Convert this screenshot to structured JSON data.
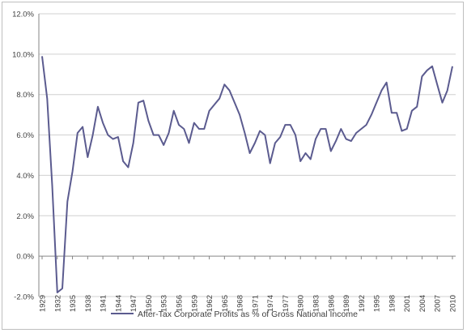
{
  "chart_data": {
    "type": "line",
    "title": "",
    "xlabel": "",
    "ylabel": "",
    "ylim": [
      -2,
      12
    ],
    "yticks": [
      "12.0%",
      "10.0%",
      "8.0%",
      "6.0%",
      "4.0%",
      "2.0%",
      "0.0%",
      "-2.0%"
    ],
    "ytick_values": [
      12,
      10,
      8,
      6,
      4,
      2,
      0,
      -2
    ],
    "xtick_labels": [
      "1929",
      "1932",
      "1935",
      "1938",
      "1941",
      "1944",
      "1947",
      "1950",
      "1953",
      "1956",
      "1959",
      "1962",
      "1965",
      "1968",
      "1971",
      "1974",
      "1977",
      "1980",
      "1983",
      "1986",
      "1989",
      "1992",
      "1995",
      "1998",
      "2001",
      "2004",
      "2007",
      "2010"
    ],
    "grid": "horizontal",
    "legend_position": "bottom",
    "series": [
      {
        "name": "After-Tax Corporate Profits as % of Gross National Income",
        "color": "#5b5b8f",
        "x": [
          1929,
          1930,
          1931,
          1932,
          1933,
          1934,
          1935,
          1936,
          1937,
          1938,
          1939,
          1940,
          1941,
          1942,
          1943,
          1944,
          1945,
          1946,
          1947,
          1948,
          1949,
          1950,
          1951,
          1952,
          1953,
          1954,
          1955,
          1956,
          1957,
          1958,
          1959,
          1960,
          1961,
          1962,
          1963,
          1964,
          1965,
          1966,
          1967,
          1968,
          1969,
          1970,
          1971,
          1972,
          1973,
          1974,
          1975,
          1976,
          1977,
          1978,
          1979,
          1980,
          1981,
          1982,
          1983,
          1984,
          1985,
          1986,
          1987,
          1988,
          1989,
          1990,
          1991,
          1992,
          1993,
          1994,
          1995,
          1996,
          1997,
          1998,
          1999,
          2000,
          2001,
          2002,
          2003,
          2004,
          2005,
          2006,
          2007,
          2008,
          2009,
          2010
        ],
        "values": [
          9.9,
          7.8,
          3.5,
          -1.8,
          -1.6,
          2.7,
          4.2,
          6.1,
          6.4,
          4.9,
          6.0,
          7.4,
          6.6,
          6.0,
          5.8,
          5.9,
          4.7,
          4.4,
          5.6,
          7.6,
          7.7,
          6.7,
          6.0,
          6.0,
          5.5,
          6.1,
          7.2,
          6.5,
          6.3,
          5.6,
          6.6,
          6.3,
          6.3,
          7.2,
          7.5,
          7.8,
          8.5,
          8.2,
          7.6,
          7.0,
          6.1,
          5.1,
          5.6,
          6.2,
          6.0,
          4.6,
          5.6,
          5.9,
          6.5,
          6.5,
          6.0,
          4.7,
          5.1,
          4.8,
          5.8,
          6.3,
          6.3,
          5.2,
          5.7,
          6.3,
          5.8,
          5.7,
          6.1,
          6.3,
          6.5,
          7.0,
          7.6,
          8.2,
          8.6,
          7.1,
          7.1,
          6.2,
          6.3,
          7.2,
          7.4,
          8.9,
          9.2,
          9.4,
          8.5,
          7.6,
          8.2,
          9.4
        ]
      }
    ]
  }
}
